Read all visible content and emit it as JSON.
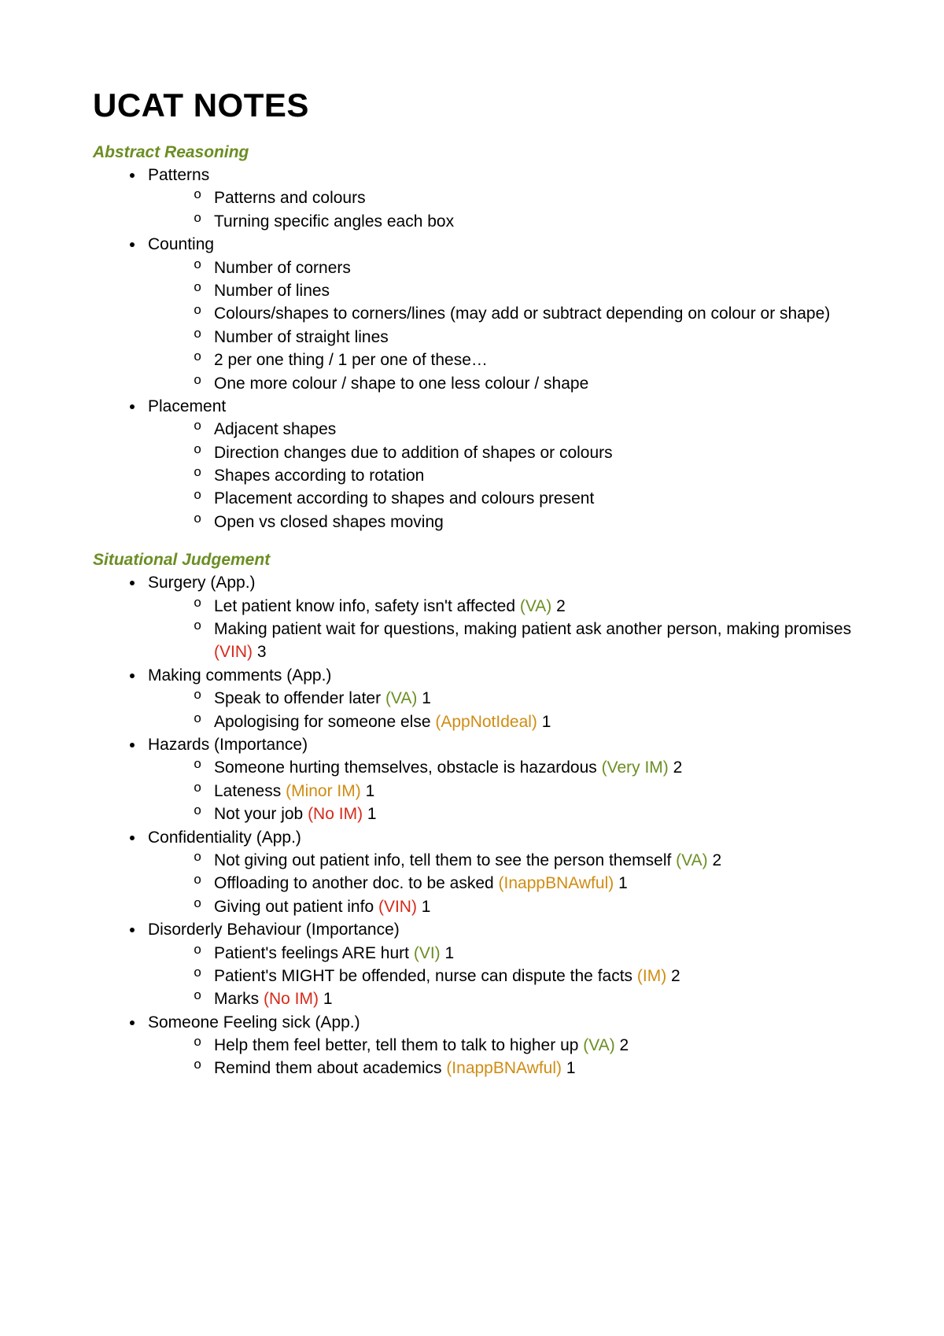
{
  "title": "UCAT NOTES",
  "colors": {
    "heading_olive": "#6b8e23",
    "tag_green": "#6b8e23",
    "tag_red": "#d62a1a",
    "tag_orange": "#d08c13",
    "body_text": "#000000",
    "background": "#ffffff"
  },
  "typography": {
    "title_fontsize": 42,
    "title_weight": 900,
    "section_fontsize": 21,
    "section_italic": true,
    "body_fontsize": 21,
    "line_height": 1.4
  },
  "sections": [
    {
      "heading": "Abstract Reasoning",
      "items": [
        {
          "label": "Patterns",
          "sub": [
            {
              "text": "Patterns and colours"
            },
            {
              "text": "Turning specific angles each box"
            }
          ]
        },
        {
          "label": "Counting",
          "sub": [
            {
              "text": "Number of corners"
            },
            {
              "text": "Number of lines"
            },
            {
              "text": "Colours/shapes to corners/lines (may add or subtract depending on colour or shape)"
            },
            {
              "text": "Number of straight lines"
            },
            {
              "text": "2 per one thing / 1 per one of these…"
            },
            {
              "text": "One more colour / shape to one less colour / shape"
            }
          ]
        },
        {
          "label": "Placement",
          "sub": [
            {
              "text": "Adjacent shapes"
            },
            {
              "text": "Direction changes due to addition of shapes or colours"
            },
            {
              "text": "Shapes according to rotation"
            },
            {
              "text": "Placement according to shapes and colours present"
            },
            {
              "text": "Open vs closed shapes moving"
            }
          ]
        }
      ]
    },
    {
      "heading": "Situational Judgement",
      "items": [
        {
          "label": "Surgery (App.)",
          "sub": [
            {
              "text": "Let patient know info, safety isn't affected ",
              "tag": "(VA)",
              "tag_color": "green",
              "after": " 2"
            },
            {
              "text": "Making patient wait for questions, making patient ask another person, making promises ",
              "tag": "(VIN)",
              "tag_color": "red",
              "after": " 3"
            }
          ]
        },
        {
          "label": "Making comments (App.)",
          "sub": [
            {
              "text": "Speak to offender later ",
              "tag": "(VA)",
              "tag_color": "green",
              "after": " 1"
            },
            {
              "text": "Apologising for someone else ",
              "tag": "(AppNotIdeal)",
              "tag_color": "orange",
              "after": " 1"
            }
          ]
        },
        {
          "label": "Hazards (Importance)",
          "sub": [
            {
              "text": "Someone hurting themselves, obstacle is hazardous ",
              "tag": "(Very IM)",
              "tag_color": "green",
              "after": " 2"
            },
            {
              "text": "Lateness ",
              "tag": "(Minor IM)",
              "tag_color": "orange",
              "after": " 1"
            },
            {
              "text": "Not your job ",
              "tag": "(No IM)",
              "tag_color": "red",
              "after": " 1"
            }
          ]
        },
        {
          "label": "Confidentiality (App.)",
          "sub": [
            {
              "text": "Not giving out patient info, tell them to see the person themself ",
              "tag": "(VA)",
              "tag_color": "green",
              "after": " 2"
            },
            {
              "text": "Offloading to another doc. to be asked ",
              "tag": "(InappBNAwful)",
              "tag_color": "orange",
              "after": " 1"
            },
            {
              "text": "Giving out patient info ",
              "tag": "(VIN)",
              "tag_color": "red",
              "after": " 1"
            }
          ]
        },
        {
          "label": "Disorderly Behaviour (Importance)",
          "sub": [
            {
              "text": "Patient's feelings ARE hurt ",
              "tag": "(VI)",
              "tag_color": "green",
              "after": " 1"
            },
            {
              "text": "Patient's MIGHT be offended, nurse can dispute the facts ",
              "tag": "(IM)",
              "tag_color": "orange",
              "after": " 2"
            },
            {
              "text": "Marks ",
              "tag": "(No IM)",
              "tag_color": "red",
              "after": " 1"
            }
          ]
        },
        {
          "label": "Someone Feeling sick (App.)",
          "sub": [
            {
              "text": "Help them feel better, tell them to talk to higher up ",
              "tag": "(VA)",
              "tag_color": "green",
              "after": " 2"
            },
            {
              "text": "Remind them about academics ",
              "tag": "(InappBNAwful)",
              "tag_color": "orange",
              "after": " 1"
            }
          ]
        }
      ]
    }
  ]
}
